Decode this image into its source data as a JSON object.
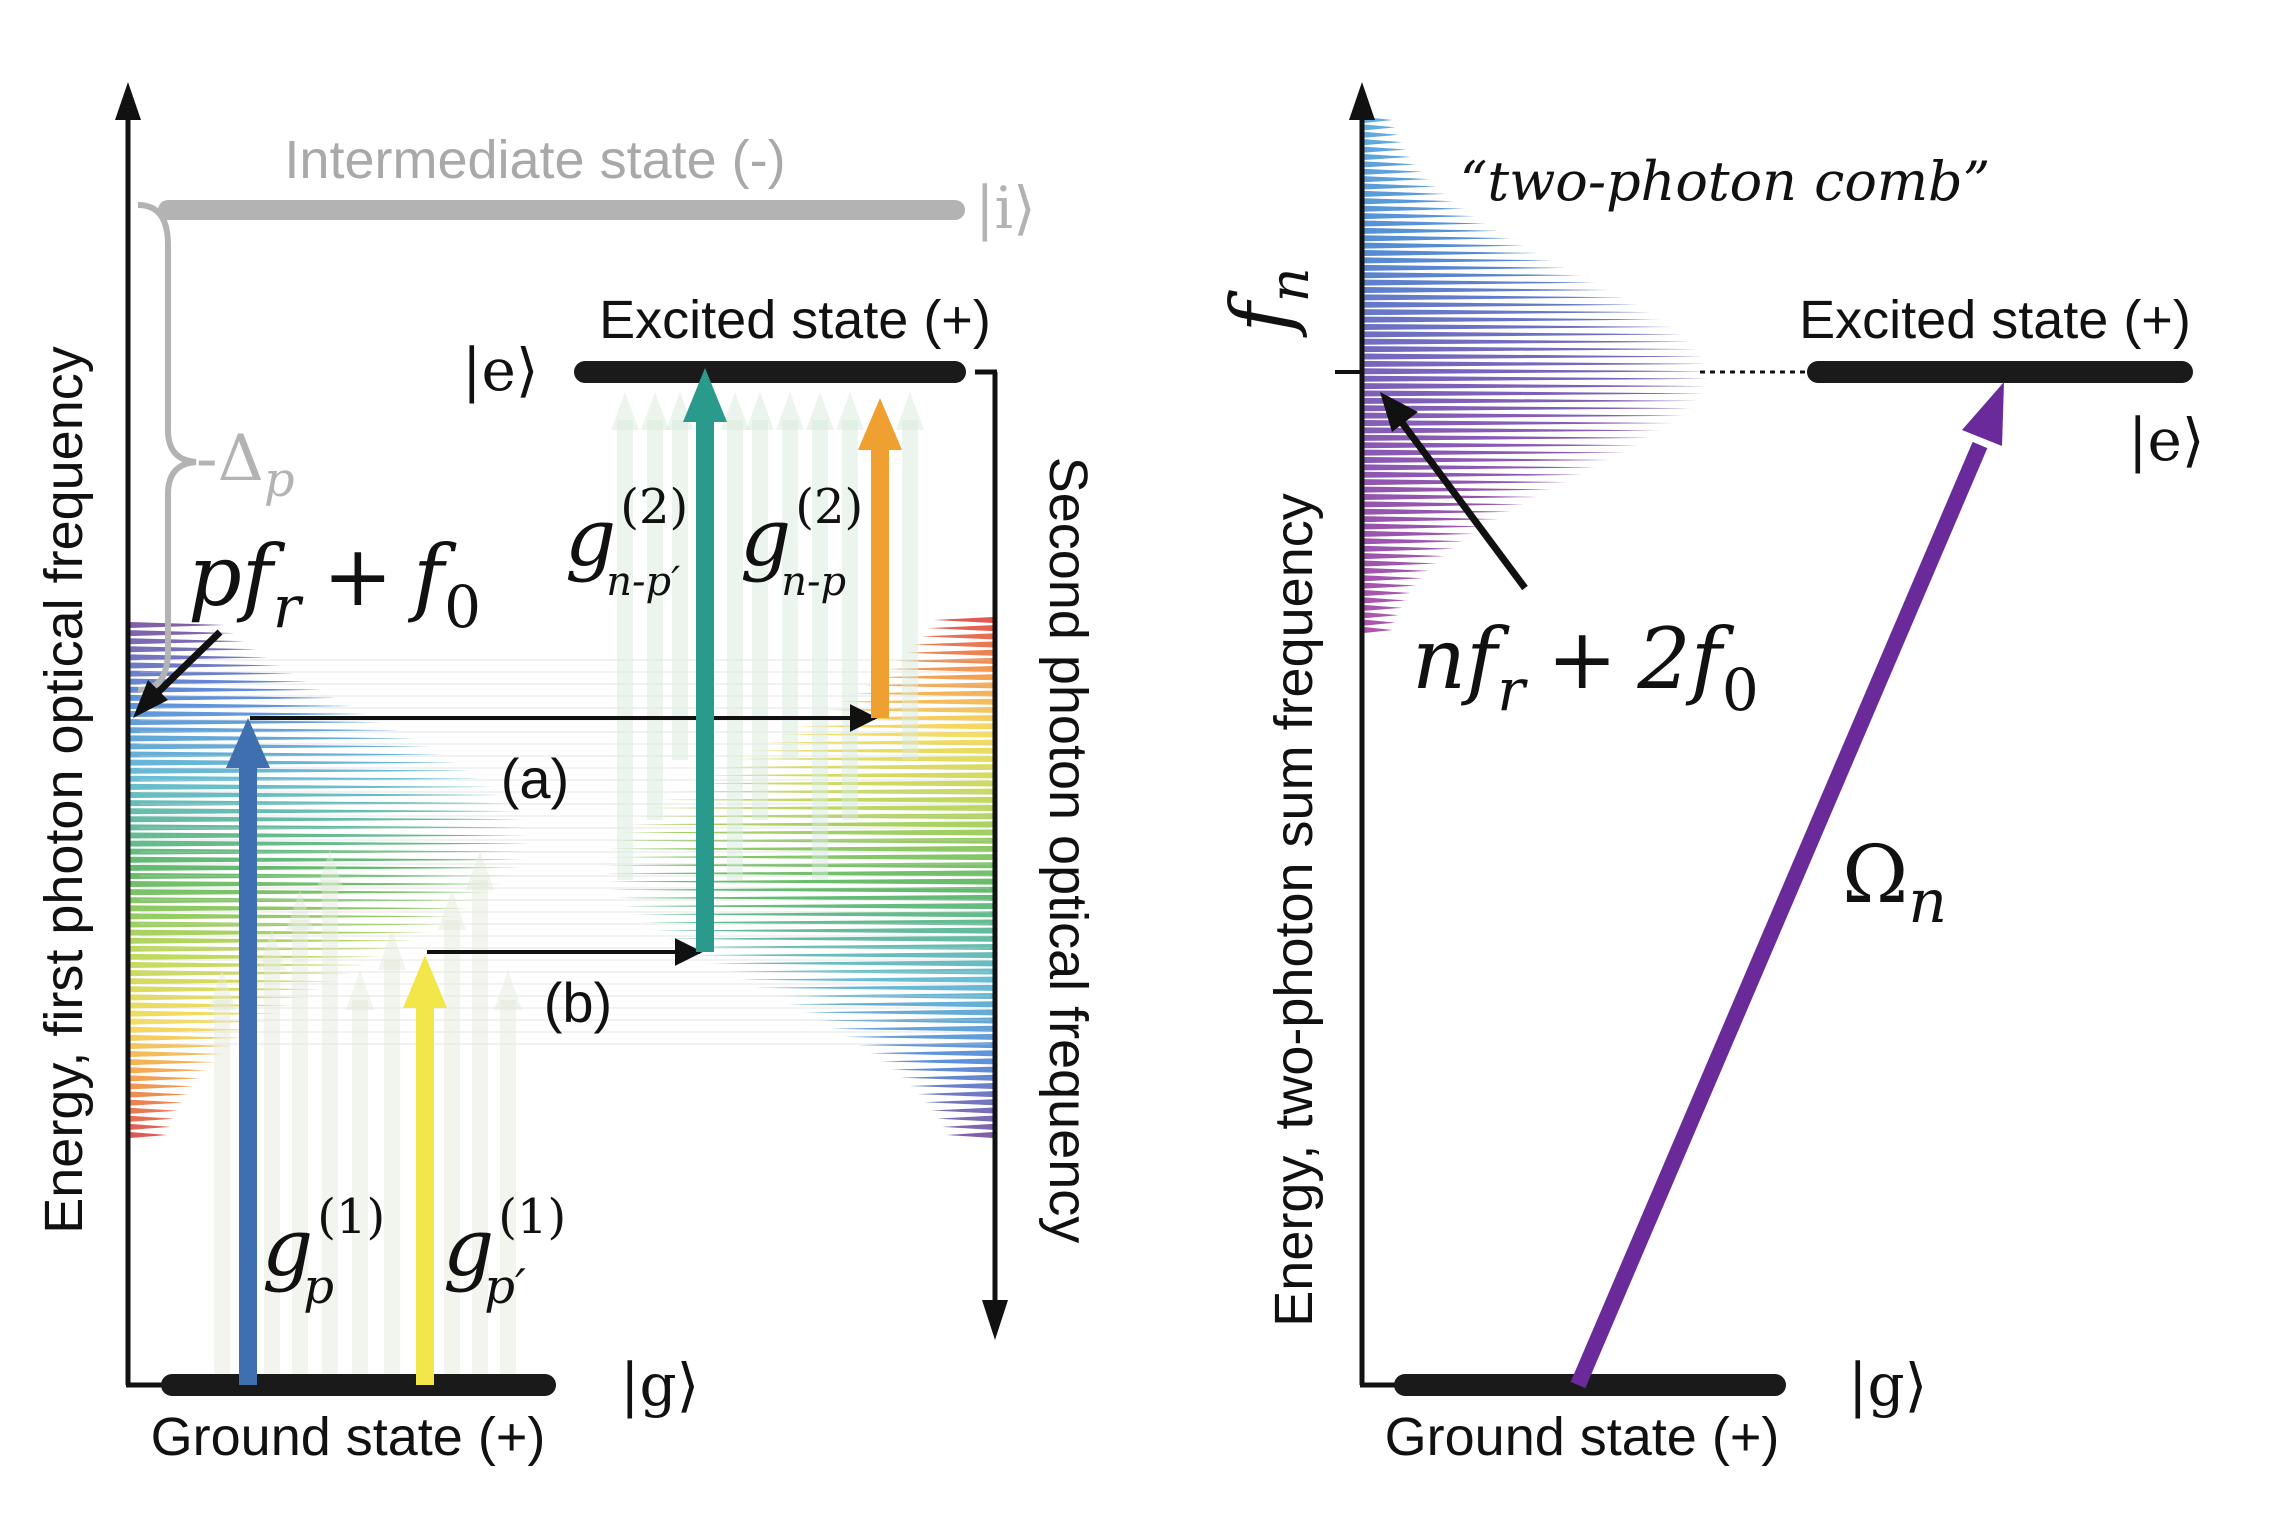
{
  "left_panel": {
    "y_axis_label": "Energy, first photon optical frequency",
    "right_axis_label": "Second photon optical frequency",
    "intermediate_label": "Intermediate state (-)",
    "intermediate_ket": "|i⟩",
    "excited_label": "Excited state (+)",
    "excited_ket": "|e⟩",
    "ground_label": "Ground state (+)",
    "ground_ket": "|g⟩",
    "detuning": {
      "sign": "-",
      "symbol": "Δ",
      "sub": "p"
    },
    "comb_tooth": {
      "a": "p",
      "b": "f",
      "b_sub": "r",
      "plus": "+",
      "c": "f",
      "c_sub": "0"
    },
    "path_a": "(a)",
    "path_b": "(b)",
    "g1": {
      "base": "g",
      "sup": "(1)",
      "sub_p": "p",
      "sub_pp": "p′"
    },
    "g2": {
      "base": "g",
      "sup": "(2)",
      "sub_npp": "n-p′",
      "sub_np": "n-p"
    }
  },
  "right_panel": {
    "y_axis_label": "Energy, two-photon sum frequency",
    "fn": {
      "base": "f",
      "sub": "n"
    },
    "comb_label": "“two-photon comb”",
    "excited_label": "Excited state (+)",
    "excited_ket": "|e⟩",
    "ground_label": "Ground state (+)",
    "ground_ket": "|g⟩",
    "tooth": {
      "a": "n",
      "b": "f",
      "b_sub": "r",
      "plus": "+",
      "c": "2f",
      "c_sub": "0"
    },
    "rabi": {
      "base": "Ω",
      "sub": "n"
    }
  },
  "colors": {
    "intermediate": "#b3b3b3",
    "state_line": "#1a1a1a",
    "arrow_blue": "#3f6fae",
    "arrow_yellow": "#f2e64a",
    "arrow_teal": "#2a9a8c",
    "arrow_orange": "#f0a030",
    "arrow_purple": "#6a2a9a"
  }
}
